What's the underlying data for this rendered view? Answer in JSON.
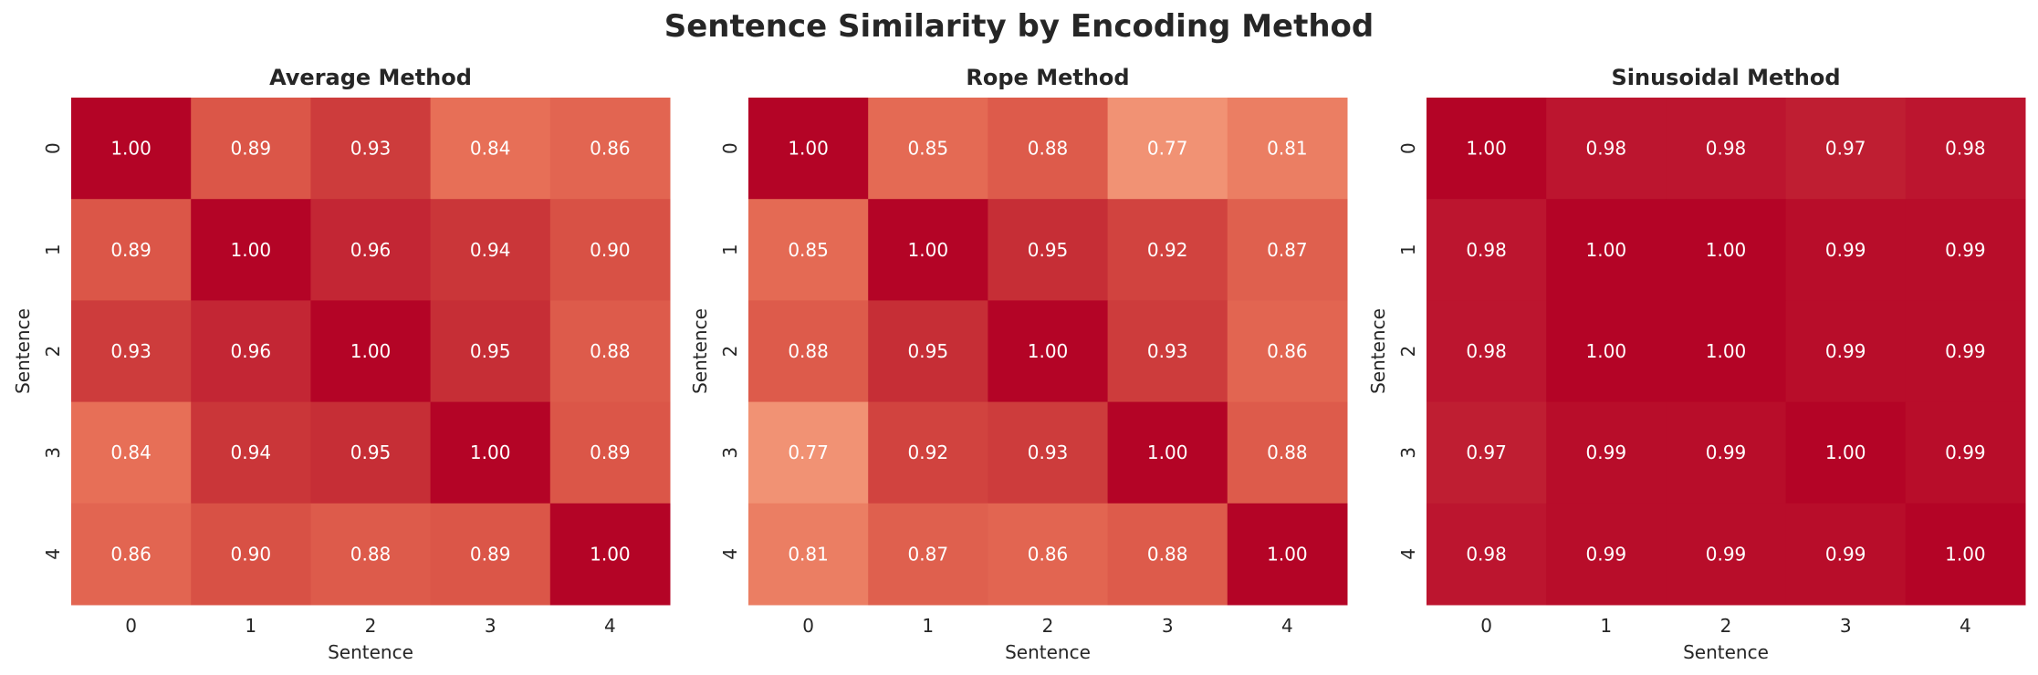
{
  "figure": {
    "title": "Sentence Similarity by Encoding Method"
  },
  "chart_data": [
    {
      "type": "heatmap",
      "title": "Average Method",
      "xlabel": "Sentence",
      "ylabel": "Sentence",
      "x_categories": [
        "0",
        "1",
        "2",
        "3",
        "4"
      ],
      "y_categories": [
        "0",
        "1",
        "2",
        "3",
        "4"
      ],
      "values": [
        [
          1.0,
          0.89,
          0.93,
          0.84,
          0.86
        ],
        [
          0.89,
          1.0,
          0.96,
          0.94,
          0.9
        ],
        [
          0.93,
          0.96,
          1.0,
          0.95,
          0.88
        ],
        [
          0.84,
          0.94,
          0.95,
          1.0,
          0.89
        ],
        [
          0.86,
          0.9,
          0.88,
          0.89,
          1.0
        ]
      ],
      "colorscale": "coolwarm",
      "colorbar": false,
      "annotation_color": "#ffffff"
    },
    {
      "type": "heatmap",
      "title": "Rope Method",
      "xlabel": "Sentence",
      "ylabel": "Sentence",
      "x_categories": [
        "0",
        "1",
        "2",
        "3",
        "4"
      ],
      "y_categories": [
        "0",
        "1",
        "2",
        "3",
        "4"
      ],
      "values": [
        [
          1.0,
          0.85,
          0.88,
          0.77,
          0.81
        ],
        [
          0.85,
          1.0,
          0.95,
          0.92,
          0.87
        ],
        [
          0.88,
          0.95,
          1.0,
          0.93,
          0.86
        ],
        [
          0.77,
          0.92,
          0.93,
          1.0,
          0.88
        ],
        [
          0.81,
          0.87,
          0.86,
          0.88,
          1.0
        ]
      ],
      "colorscale": "coolwarm",
      "colorbar": false,
      "annotation_color": "#ffffff"
    },
    {
      "type": "heatmap",
      "title": "Sinusoidal Method",
      "xlabel": "Sentence",
      "ylabel": "Sentence",
      "x_categories": [
        "0",
        "1",
        "2",
        "3",
        "4"
      ],
      "y_categories": [
        "0",
        "1",
        "2",
        "3",
        "4"
      ],
      "values": [
        [
          1.0,
          0.98,
          0.98,
          0.97,
          0.98
        ],
        [
          0.98,
          1.0,
          1.0,
          0.99,
          0.99
        ],
        [
          0.98,
          1.0,
          1.0,
          0.99,
          0.99
        ],
        [
          0.97,
          0.99,
          0.99,
          1.0,
          0.99
        ],
        [
          0.98,
          0.99,
          0.99,
          0.99,
          1.0
        ]
      ],
      "colorscale": "coolwarm",
      "colorbar": false,
      "annotation_color": "#ffffff"
    }
  ]
}
